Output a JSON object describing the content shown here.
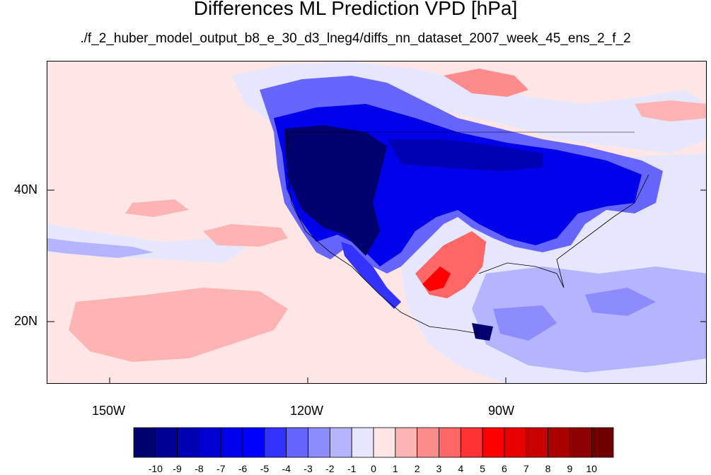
{
  "title": "Differences ML Prediction VPD [hPa]",
  "subtitle": "./f_2_huber_model_output_b8_e_30_d3_lneg4/diffs_nn_dataset_2007_week_45_ens_2_f_2",
  "lat_labels": [
    "40N",
    "20N"
  ],
  "lon_labels": [
    "150W",
    "120W",
    "90W"
  ],
  "colorbar": {
    "labels": [
      "-10",
      "-9",
      "-8",
      "-7",
      "-6",
      "-5",
      "-4",
      "-3",
      "-2",
      "-1",
      "0",
      "1",
      "2",
      "3",
      "4",
      "5",
      "6",
      "7",
      "8",
      "9",
      "10"
    ],
    "colors": [
      "#00006e",
      "#000094",
      "#0000b4",
      "#0000d2",
      "#0000eb",
      "#0000ff",
      "#3333ff",
      "#6666ff",
      "#8c8cff",
      "#b4b4ff",
      "#e6e6ff",
      "#ffe6e6",
      "#ffb4b4",
      "#ff8c8c",
      "#ff6666",
      "#ff3333",
      "#ff0000",
      "#e60000",
      "#c80000",
      "#aa0000",
      "#8c0000",
      "#6e0000"
    ]
  }
}
